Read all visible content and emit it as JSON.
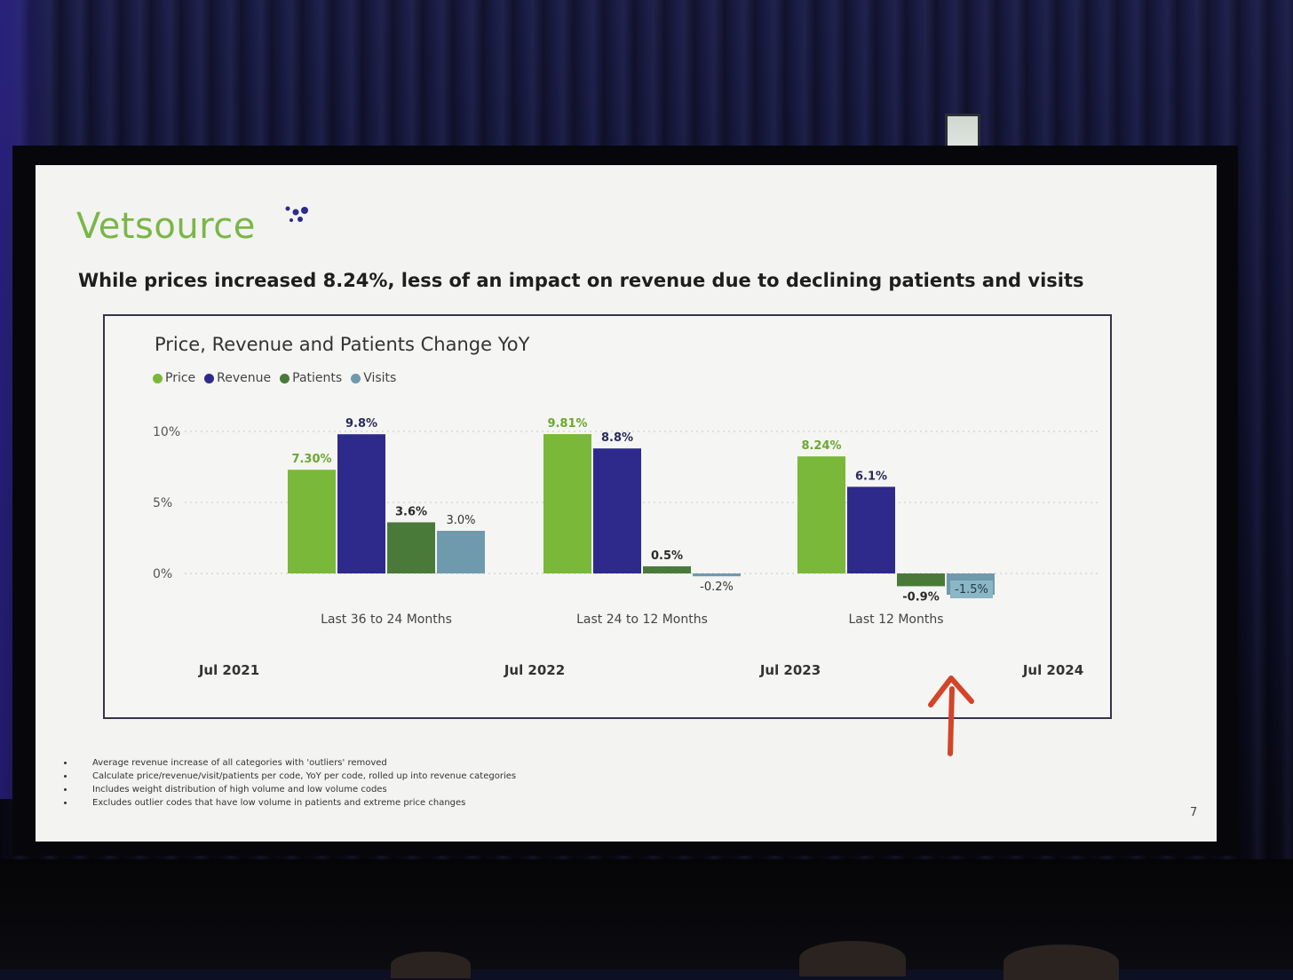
{
  "slide": {
    "logo_text": "Vetsource",
    "headline": "While prices increased 8.24%, less of an impact on revenue due to declining patients and visits",
    "page_number": "7",
    "bullets": [
      "Average revenue increase of all categories with 'outliers' removed",
      "Calculate price/revenue/visit/patients per code, YoY per code, rolled up into revenue categories",
      "Includes weight distribution of high volume and low volume codes",
      "Excludes outlier codes that have low volume in patients and extreme price changes"
    ]
  },
  "colors": {
    "price": "#7ab83a",
    "revenue": "#2e2a8c",
    "patients": "#4a7a3a",
    "visits": "#6f9aad",
    "arrow": "#d2452a",
    "logo": "#7ab648"
  },
  "chart_data": {
    "type": "bar",
    "title": "Price, Revenue and Patients Change YoY",
    "categories": [
      "Last 36 to 24 Months",
      "Last 24 to 12 Months",
      "Last 12 Months"
    ],
    "series": [
      {
        "name": "Price",
        "values": [
          7.3,
          9.81,
          8.24
        ],
        "labels": [
          "7.30%",
          "9.81%",
          "8.24%"
        ]
      },
      {
        "name": "Revenue",
        "values": [
          9.8,
          8.8,
          6.1
        ],
        "labels": [
          "9.8%",
          "8.8%",
          "6.1%"
        ]
      },
      {
        "name": "Patients",
        "values": [
          3.6,
          0.5,
          -0.9
        ],
        "labels": [
          "3.6%",
          "0.5%",
          "-0.9%"
        ]
      },
      {
        "name": "Visits",
        "values": [
          3.0,
          -0.2,
          -1.5
        ],
        "labels": [
          "3.0%",
          "-0.2%",
          "-1.5%"
        ]
      }
    ],
    "y_ticks": [
      "0%",
      "5%",
      "10%"
    ],
    "y_tick_values": [
      0,
      5,
      10
    ],
    "ylim": [
      -2,
      11
    ],
    "grid": true,
    "legend_position": "top-left",
    "time_labels": [
      "Jul 2021",
      "Jul 2022",
      "Jul 2023",
      "Jul 2024"
    ]
  }
}
